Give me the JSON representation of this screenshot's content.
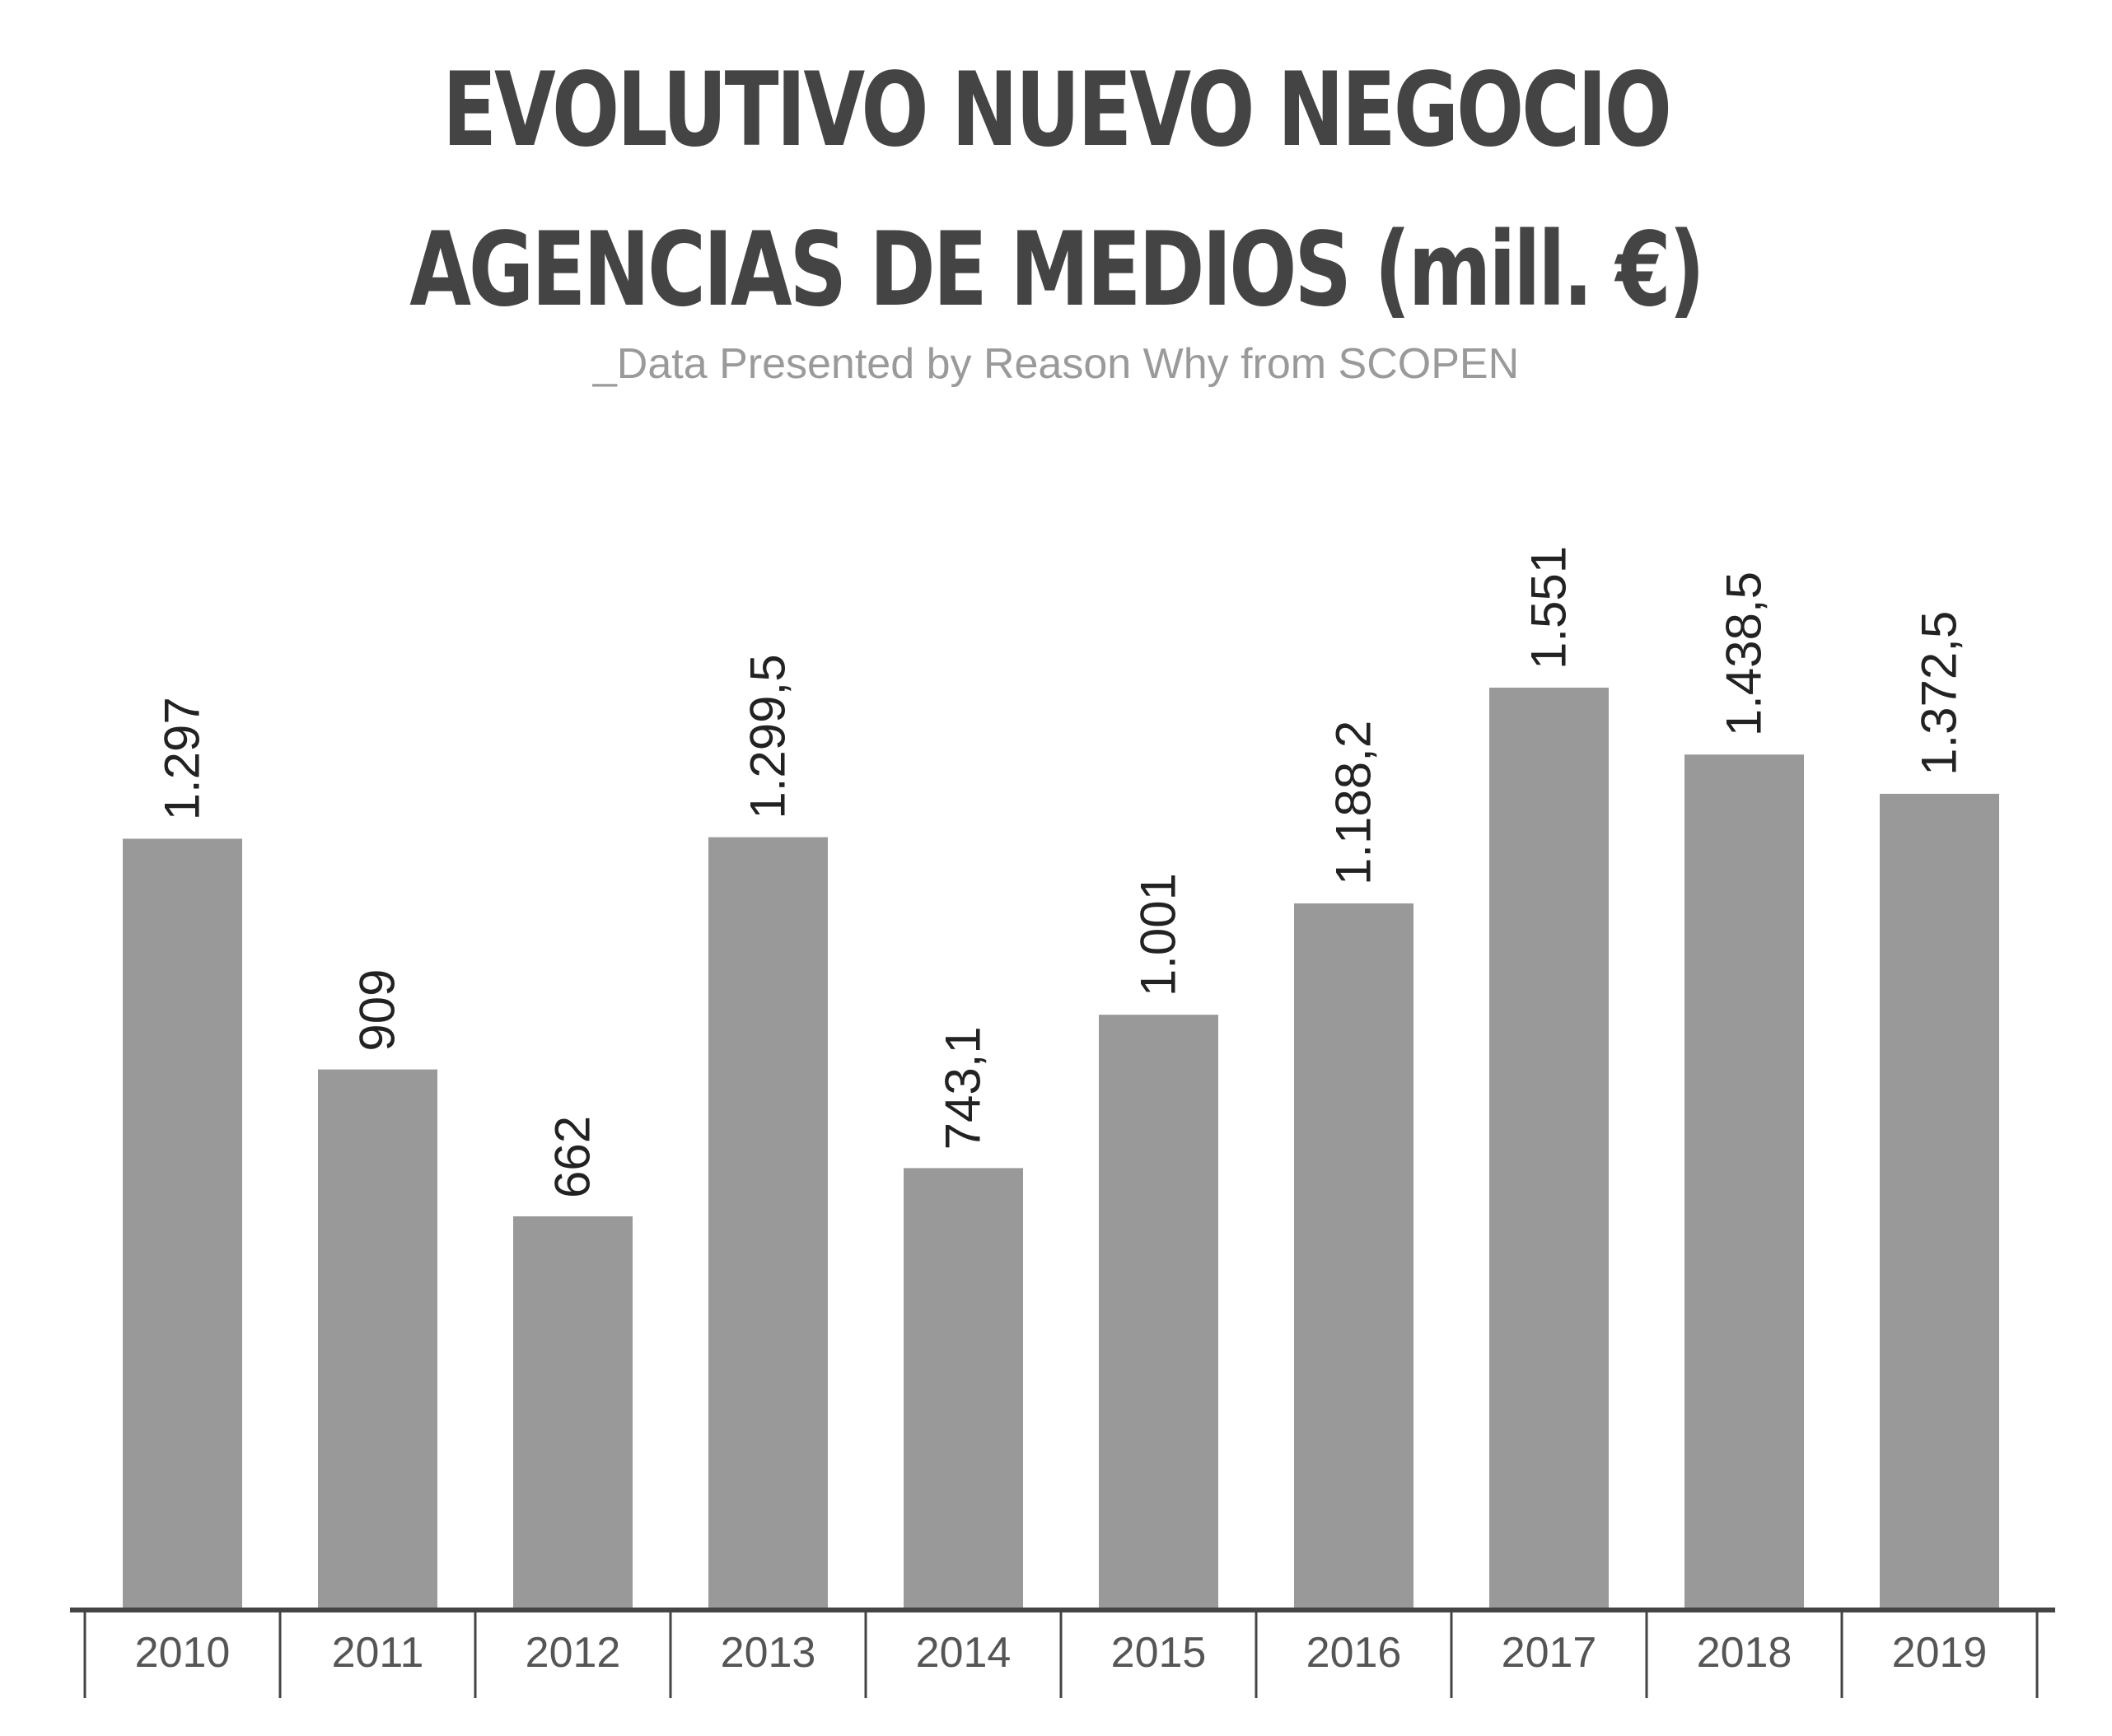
{
  "header": {
    "title_line1": "EVOLUTIVO NUEVO NEGOCIO",
    "title_line2": "AGENCIAS DE MEDIOS (mill. €)",
    "subtitle": "_Data Presented by Reason Why from SCOPEN"
  },
  "colors": {
    "bar": "#999999",
    "text": "#444444",
    "axis": "#444444"
  },
  "chart_data": {
    "type": "bar",
    "title": "EVOLUTIVO NUEVO NEGOCIO AGENCIAS DE MEDIOS (mill. €)",
    "subtitle": "_Data Presented by Reason Why from SCOPEN",
    "categories": [
      "2010",
      "2011",
      "2012",
      "2013",
      "2014",
      "2015",
      "2016",
      "2017",
      "2018",
      "2019"
    ],
    "values": [
      1297,
      909,
      662,
      1299.5,
      743.1,
      1001,
      1188.2,
      1551,
      1438.5,
      1372.5
    ],
    "labels": [
      "1.297",
      "909",
      "662",
      "1.299,5",
      "743,1",
      "1.001",
      "1.188,2",
      "1.551",
      "1.438,5",
      "1.372,5"
    ],
    "xlabel": "",
    "ylabel": "",
    "ylim": [
      0,
      1551
    ],
    "grid": false,
    "legend": "none"
  }
}
